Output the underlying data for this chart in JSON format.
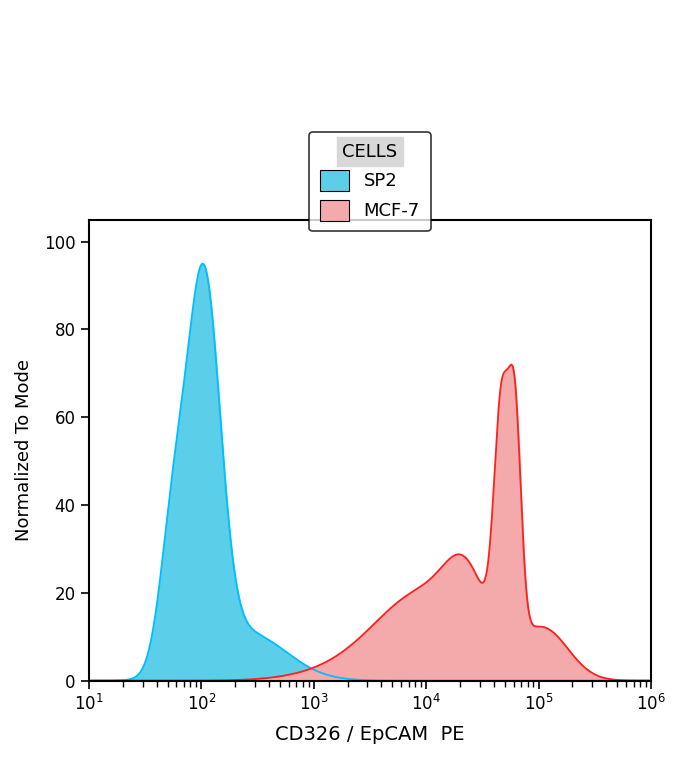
{
  "xlabel": "CD326 / EpCAM  PE",
  "ylabel": "Normalized To Mode",
  "xlim_log_min": 1,
  "xlim_log_max": 6,
  "ylim": [
    0,
    105
  ],
  "yticks": [
    0,
    20,
    40,
    60,
    80,
    100
  ],
  "sp2_color_fill": "#5BCFEA",
  "sp2_color_line": "#00BFFF",
  "mcf7_color_fill": "#F4AAAA",
  "mcf7_color_line": "#FF2020",
  "legend_title": "CELLS",
  "legend_labels": [
    "SP2",
    "MCF-7"
  ],
  "legend_title_bg": "#D8D8D8",
  "background_color": "#FFFFFF",
  "axis_linewidth": 1.5
}
